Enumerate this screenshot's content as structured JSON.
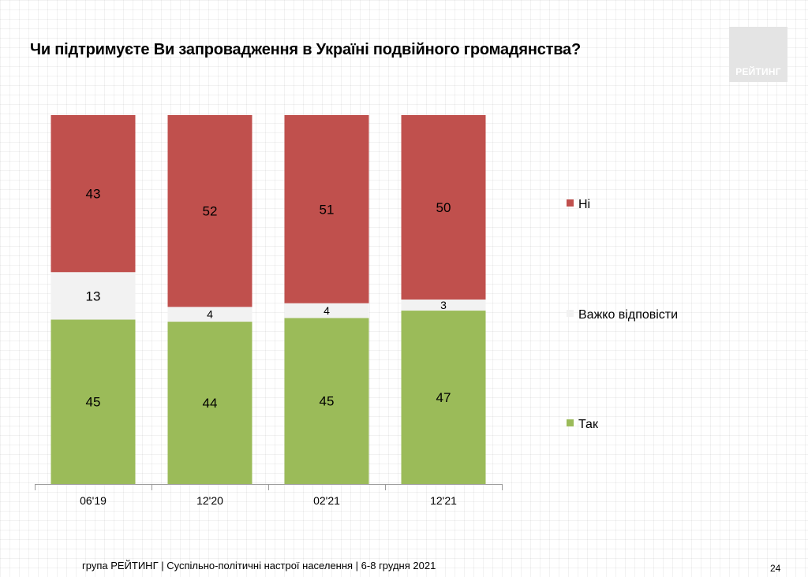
{
  "title": "Чи підтримуєте Ви запровадження в Україні подвійного громадянства?",
  "logo_text": "РЕЙТИНГ",
  "footer": "група РЕЙТИНГ | Суспільно-політичні настрої населення  | 6-8 грудня 2021",
  "page_number": "24",
  "colors": {
    "ni": "#c0504d",
    "vazhko": "#f2f2f2",
    "tak": "#9bbb59",
    "logo_bg": "#e4e4e4"
  },
  "chart_data": {
    "type": "bar",
    "stacked": true,
    "categories": [
      "06'19",
      "12'20",
      "02'21",
      "12'21"
    ],
    "series": [
      {
        "name": "Так",
        "values": [
          45,
          44,
          45,
          47
        ]
      },
      {
        "name": "Важко відповісти",
        "values": [
          13,
          4,
          4,
          3
        ]
      },
      {
        "name": "Ні",
        "values": [
          43,
          52,
          51,
          50
        ]
      }
    ],
    "legend": [
      "Ні",
      "Важко відповісти",
      "Так"
    ],
    "legend_position": "right",
    "title": "Чи підтримуєте Ви запровадження в Україні подвійного громадянства?",
    "xlabel": "",
    "ylabel": ""
  }
}
